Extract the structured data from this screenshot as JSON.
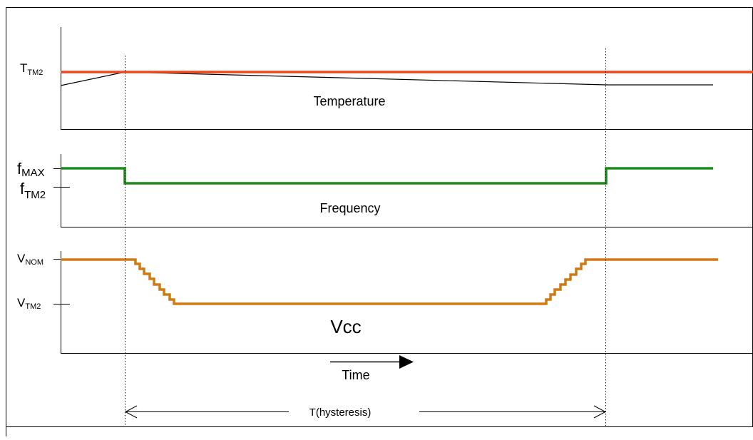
{
  "panels": {
    "temperature": {
      "label": "Temperature",
      "threshold_symbol": "T",
      "threshold_subscript": "TM2"
    },
    "frequency": {
      "label": "Frequency",
      "max_symbol": "f",
      "max_subscript": "MAX",
      "tm2_symbol": "f",
      "tm2_subscript": "TM2"
    },
    "vcc": {
      "label": "Vcc",
      "nom_symbol": "V",
      "nom_subscript": "NOM",
      "tm2_symbol": "V",
      "tm2_subscript": "TM2"
    }
  },
  "time_label": "Time",
  "hysteresis_label": "T(hysteresis)",
  "colors": {
    "temperature_threshold": "#f0461e",
    "frequency_trace": "#1b8a1b",
    "vcc_trace": "#d07a14",
    "axes": "#000000"
  }
}
